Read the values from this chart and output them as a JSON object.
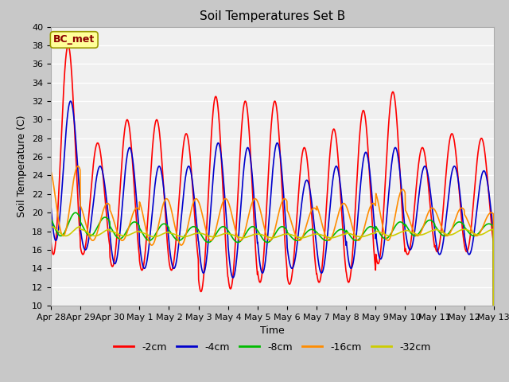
{
  "title": "Soil Temperatures Set B",
  "xlabel": "Time",
  "ylabel": "Soil Temperature (C)",
  "ylim": [
    10,
    40
  ],
  "yticks": [
    10,
    12,
    14,
    16,
    18,
    20,
    22,
    24,
    26,
    28,
    30,
    32,
    34,
    36,
    38,
    40
  ],
  "annotation_text": "BC_met",
  "annotation_color": "#8B0000",
  "annotation_bg": "#FFFF99",
  "fig_bg": "#C8C8C8",
  "plot_bg": "#F0F0F0",
  "series": {
    "-2cm": {
      "color": "#FF0000",
      "lw": 1.2
    },
    "-4cm": {
      "color": "#0000CC",
      "lw": 1.2
    },
    "-8cm": {
      "color": "#00BB00",
      "lw": 1.2
    },
    "-16cm": {
      "color": "#FF8C00",
      "lw": 1.2
    },
    "-32cm": {
      "color": "#CCCC00",
      "lw": 1.2
    }
  },
  "legend_order": [
    "-2cm",
    "-4cm",
    "-8cm",
    "-16cm",
    "-32cm"
  ],
  "date_labels": [
    "Apr 28",
    "Apr 29",
    "Apr 30",
    "May 1",
    "May 2",
    "May 3",
    "May 4",
    "May 5",
    "May 6",
    "May 7",
    "May 8",
    "May 9",
    "May 10",
    "May 11",
    "May 12",
    "May 13"
  ],
  "date_ticks_hours": [
    0,
    24,
    48,
    72,
    96,
    120,
    144,
    168,
    192,
    216,
    240,
    264,
    288,
    312,
    336,
    360
  ]
}
